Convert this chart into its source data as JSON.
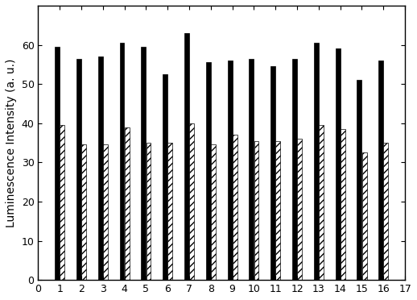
{
  "categories": [
    1,
    2,
    3,
    4,
    5,
    6,
    7,
    8,
    9,
    10,
    11,
    12,
    13,
    14,
    15,
    16
  ],
  "solid_values": [
    59.5,
    56.5,
    57.0,
    60.5,
    59.5,
    52.5,
    63.0,
    55.5,
    56.0,
    56.5,
    54.5,
    56.5,
    60.5,
    59.0,
    51.0,
    56.0
  ],
  "hatched_values": [
    39.5,
    34.5,
    34.5,
    39.0,
    35.0,
    35.0,
    40.0,
    34.5,
    37.0,
    35.5,
    35.5,
    36.0,
    39.5,
    38.5,
    32.5,
    35.0
  ],
  "solid_color": "#000000",
  "hatched_color": "#ffffff",
  "hatched_edgecolor": "#000000",
  "bar_width": 0.22,
  "bar_gap": 0.01,
  "xlim": [
    0,
    17
  ],
  "ylim": [
    0,
    70
  ],
  "yticks": [
    0,
    10,
    20,
    30,
    40,
    50,
    60
  ],
  "xticks": [
    0,
    1,
    2,
    3,
    4,
    5,
    6,
    7,
    8,
    9,
    10,
    11,
    12,
    13,
    14,
    15,
    16,
    17
  ],
  "ylabel": "Luminescence Intensity (a. u.)",
  "xlabel": "",
  "background_color": "#ffffff",
  "hatch_pattern": "////",
  "tick_fontsize": 9,
  "ylabel_fontsize": 10
}
